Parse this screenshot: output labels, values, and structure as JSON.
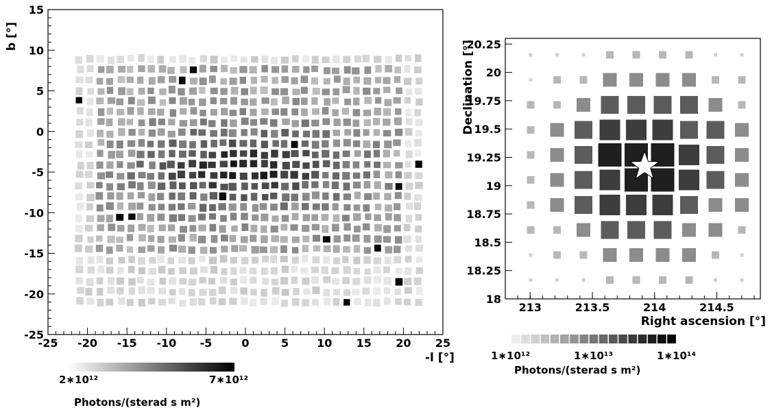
{
  "chart_data": [
    {
      "type": "heatmap",
      "xlabel": "-l [°]",
      "ylabel": "b [°]",
      "xlim": [
        -25,
        25
      ],
      "ylim": [
        -25,
        15
      ],
      "xticks": [
        "-25",
        "-20",
        "-15",
        "-10",
        "-5",
        "0",
        "5",
        "10",
        "15",
        "20",
        "25"
      ],
      "yticks": [
        "15",
        "10",
        "5",
        "0",
        "-5",
        "-10",
        "-15",
        "-20",
        "-25"
      ],
      "grid_lon_range": [
        -21,
        22
      ],
      "grid_lat_range": [
        -21,
        10
      ],
      "colorbar": {
        "min_label": "2∗10¹²",
        "max_label": "7∗10¹²",
        "title": "Photons/(sterad s m²)"
      }
    },
    {
      "type": "heatmap",
      "xlabel": "Right ascension [°]",
      "ylabel": "Declination [°]",
      "xlim": [
        212.8,
        214.85
      ],
      "ylim": [
        18,
        20.3
      ],
      "xticks": [
        "213",
        "213.5",
        "214",
        "214.5"
      ],
      "yticks": [
        "18",
        "18.25",
        "18.5",
        "18.75",
        "19",
        "19.25",
        "19.5",
        "19.75",
        "20",
        "20.25"
      ],
      "source_marker": {
        "ra": 213.92,
        "dec": 19.17,
        "shape": "star"
      },
      "colorbar": {
        "labels": [
          "1∗10¹²",
          "1∗10¹³",
          "1∗10¹⁴"
        ],
        "title": "Photons/(sterad s m²)"
      }
    }
  ]
}
